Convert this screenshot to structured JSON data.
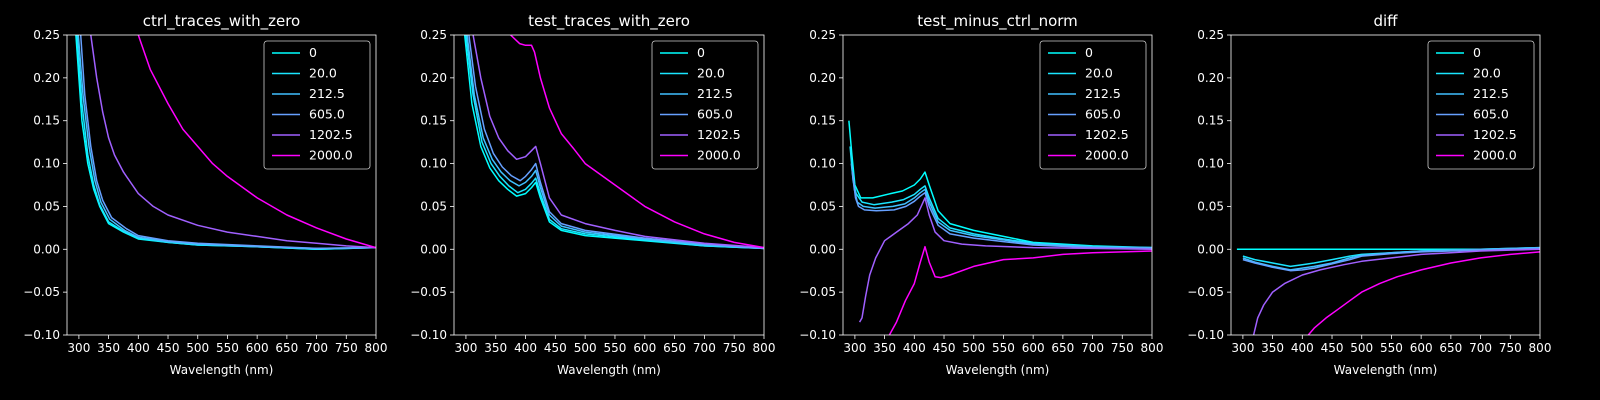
{
  "chart_data": [
    {
      "type": "line",
      "title": "ctrl_traces_with_zero",
      "xlabel": "Wavelength (nm)",
      "ylabel": "",
      "xlim": [
        280,
        800
      ],
      "ylim": [
        -0.1,
        0.25
      ],
      "xticks": [
        "300",
        "350",
        "400",
        "450",
        "500",
        "550",
        "600",
        "650",
        "700",
        "750",
        "800"
      ],
      "yticks": [
        "−0.10",
        "−0.05",
        "0.00",
        "0.05",
        "0.10",
        "0.15",
        "0.20",
        "0.25"
      ],
      "legend": "top-right",
      "series": [
        {
          "name": "0",
          "color": "#00ffff",
          "x": [
            295,
            305,
            315,
            325,
            335,
            350,
            375,
            400,
            450,
            500,
            600,
            700,
            800
          ],
          "y": [
            0.25,
            0.15,
            0.1,
            0.07,
            0.05,
            0.03,
            0.02,
            0.012,
            0.008,
            0.005,
            0.003,
            0.0,
            0.002
          ]
        },
        {
          "name": "20.0",
          "color": "#1ae5ff",
          "x": [
            297,
            305,
            315,
            325,
            335,
            350,
            375,
            400,
            450,
            500,
            600,
            700,
            800
          ],
          "y": [
            0.25,
            0.17,
            0.11,
            0.075,
            0.052,
            0.032,
            0.021,
            0.013,
            0.008,
            0.005,
            0.003,
            0.0,
            0.002
          ]
        },
        {
          "name": "212.5",
          "color": "#40c0ff",
          "x": [
            299,
            307,
            317,
            327,
            337,
            352,
            377,
            400,
            450,
            500,
            600,
            700,
            800
          ],
          "y": [
            0.25,
            0.18,
            0.12,
            0.08,
            0.055,
            0.035,
            0.022,
            0.014,
            0.009,
            0.006,
            0.003,
            0.001,
            0.002
          ]
        },
        {
          "name": "605.0",
          "color": "#66a0ff",
          "x": [
            303,
            310,
            320,
            330,
            340,
            355,
            380,
            400,
            450,
            500,
            600,
            700,
            800
          ],
          "y": [
            0.25,
            0.18,
            0.12,
            0.08,
            0.057,
            0.037,
            0.024,
            0.016,
            0.01,
            0.007,
            0.004,
            0.001,
            0.002
          ]
        },
        {
          "name": "1202.5",
          "color": "#a060ff",
          "x": [
            320,
            330,
            340,
            350,
            360,
            375,
            400,
            425,
            450,
            500,
            550,
            600,
            650,
            700,
            750,
            800
          ],
          "y": [
            0.25,
            0.2,
            0.16,
            0.13,
            0.11,
            0.09,
            0.065,
            0.05,
            0.04,
            0.028,
            0.02,
            0.015,
            0.01,
            0.007,
            0.004,
            0.002
          ]
        },
        {
          "name": "2000.0",
          "color": "#ff00ff",
          "x": [
            400,
            420,
            450,
            475,
            500,
            525,
            550,
            600,
            650,
            700,
            750,
            800
          ],
          "y": [
            0.25,
            0.21,
            0.17,
            0.14,
            0.12,
            0.1,
            0.085,
            0.06,
            0.04,
            0.025,
            0.012,
            0.002
          ]
        }
      ]
    },
    {
      "type": "line",
      "title": "test_traces_with_zero",
      "xlabel": "Wavelength (nm)",
      "ylabel": "",
      "xlim": [
        280,
        800
      ],
      "ylim": [
        -0.1,
        0.25
      ],
      "xticks": [
        "300",
        "350",
        "400",
        "450",
        "500",
        "550",
        "600",
        "650",
        "700",
        "750",
        "800"
      ],
      "yticks": [
        "−0.10",
        "−0.05",
        "0.00",
        "0.05",
        "0.10",
        "0.15",
        "0.20",
        "0.25"
      ],
      "legend": "top-right",
      "series": [
        {
          "name": "0",
          "color": "#00ffff",
          "x": [
            298,
            310,
            325,
            340,
            355,
            370,
            385,
            400,
            410,
            417,
            425,
            440,
            460,
            500,
            600,
            700,
            800
          ],
          "y": [
            0.25,
            0.17,
            0.12,
            0.095,
            0.08,
            0.07,
            0.062,
            0.065,
            0.072,
            0.078,
            0.06,
            0.032,
            0.022,
            0.016,
            0.01,
            0.004,
            0.001
          ]
        },
        {
          "name": "20.0",
          "color": "#1ae5ff",
          "x": [
            300,
            312,
            327,
            342,
            357,
            372,
            387,
            400,
            410,
            417,
            425,
            440,
            460,
            500,
            600,
            700,
            800
          ],
          "y": [
            0.25,
            0.18,
            0.125,
            0.1,
            0.085,
            0.074,
            0.066,
            0.07,
            0.077,
            0.083,
            0.065,
            0.035,
            0.024,
            0.018,
            0.011,
            0.004,
            0.001
          ]
        },
        {
          "name": "212.5",
          "color": "#40c0ff",
          "x": [
            302,
            314,
            329,
            344,
            359,
            374,
            389,
            400,
            410,
            417,
            425,
            440,
            460,
            500,
            600,
            700,
            800
          ],
          "y": [
            0.25,
            0.18,
            0.13,
            0.105,
            0.09,
            0.08,
            0.074,
            0.078,
            0.085,
            0.092,
            0.072,
            0.04,
            0.027,
            0.02,
            0.012,
            0.005,
            0.001
          ]
        },
        {
          "name": "605.0",
          "color": "#66a0ff",
          "x": [
            305,
            316,
            331,
            346,
            361,
            376,
            391,
            400,
            410,
            417,
            425,
            440,
            460,
            500,
            600,
            700,
            800
          ],
          "y": [
            0.25,
            0.19,
            0.14,
            0.112,
            0.096,
            0.086,
            0.08,
            0.085,
            0.093,
            0.1,
            0.078,
            0.044,
            0.03,
            0.022,
            0.013,
            0.006,
            0.001
          ]
        },
        {
          "name": "1202.5",
          "color": "#a060ff",
          "x": [
            312,
            325,
            340,
            355,
            370,
            385,
            400,
            410,
            417,
            425,
            440,
            460,
            500,
            550,
            600,
            700,
            800
          ],
          "y": [
            0.25,
            0.2,
            0.155,
            0.13,
            0.115,
            0.105,
            0.108,
            0.115,
            0.12,
            0.1,
            0.06,
            0.04,
            0.03,
            0.022,
            0.015,
            0.007,
            0.002
          ]
        },
        {
          "name": "2000.0",
          "color": "#ff00ff",
          "x": [
            375,
            390,
            400,
            410,
            415,
            425,
            440,
            460,
            480,
            500,
            550,
            600,
            650,
            700,
            750,
            800
          ],
          "y": [
            0.25,
            0.24,
            0.238,
            0.238,
            0.23,
            0.2,
            0.165,
            0.135,
            0.118,
            0.1,
            0.075,
            0.05,
            0.032,
            0.018,
            0.008,
            0.002
          ]
        }
      ]
    },
    {
      "type": "line",
      "title": "test_minus_ctrl_norm",
      "xlabel": "Wavelength (nm)",
      "ylabel": "",
      "xlim": [
        280,
        800
      ],
      "ylim": [
        -0.1,
        0.25
      ],
      "xticks": [
        "300",
        "350",
        "400",
        "450",
        "500",
        "550",
        "600",
        "650",
        "700",
        "750",
        "800"
      ],
      "yticks": [
        "−0.10",
        "−0.05",
        "0.00",
        "0.05",
        "0.10",
        "0.15",
        "0.20",
        "0.25"
      ],
      "legend": "top-right",
      "series": [
        {
          "name": "0",
          "color": "#00ffff",
          "x": [
            290,
            295,
            300,
            310,
            330,
            360,
            380,
            400,
            410,
            418,
            425,
            440,
            460,
            500,
            550,
            600,
            700,
            800
          ],
          "y": [
            0.15,
            0.11,
            0.075,
            0.06,
            0.06,
            0.065,
            0.068,
            0.075,
            0.082,
            0.09,
            0.075,
            0.045,
            0.03,
            0.022,
            0.015,
            0.008,
            0.004,
            0.002
          ]
        },
        {
          "name": "20.0",
          "color": "#1ae5ff",
          "x": [
            292,
            297,
            302,
            312,
            332,
            362,
            382,
            400,
            410,
            418,
            425,
            440,
            460,
            500,
            550,
            600,
            700,
            800
          ],
          "y": [
            0.12,
            0.08,
            0.065,
            0.055,
            0.052,
            0.055,
            0.058,
            0.064,
            0.07,
            0.074,
            0.06,
            0.036,
            0.025,
            0.018,
            0.012,
            0.007,
            0.003,
            0.002
          ]
        },
        {
          "name": "212.5",
          "color": "#40c0ff",
          "x": [
            294,
            299,
            304,
            314,
            334,
            364,
            384,
            400,
            410,
            418,
            425,
            440,
            460,
            500,
            550,
            600,
            700,
            800
          ],
          "y": [
            0.1,
            0.07,
            0.055,
            0.05,
            0.048,
            0.05,
            0.053,
            0.06,
            0.066,
            0.07,
            0.055,
            0.032,
            0.022,
            0.016,
            0.011,
            0.006,
            0.003,
            0.002
          ]
        },
        {
          "name": "605.0",
          "color": "#66a0ff",
          "x": [
            296,
            301,
            306,
            316,
            336,
            366,
            386,
            400,
            410,
            418,
            425,
            440,
            460,
            500,
            550,
            600,
            700,
            800
          ],
          "y": [
            0.09,
            0.06,
            0.05,
            0.046,
            0.045,
            0.046,
            0.05,
            0.056,
            0.062,
            0.066,
            0.05,
            0.028,
            0.018,
            0.013,
            0.009,
            0.005,
            0.002,
            0.001
          ]
        },
        {
          "name": "1202.5",
          "color": "#a060ff",
          "x": [
            308,
            312,
            318,
            325,
            335,
            350,
            370,
            390,
            405,
            418,
            425,
            435,
            450,
            480,
            520,
            600,
            700,
            800
          ],
          "y": [
            -0.085,
            -0.08,
            -0.055,
            -0.03,
            -0.01,
            0.01,
            0.02,
            0.03,
            0.04,
            0.06,
            0.04,
            0.02,
            0.01,
            0.006,
            0.004,
            0.002,
            0.001,
            0.0
          ]
        },
        {
          "name": "2000.0",
          "color": "#ff00ff",
          "x": [
            358,
            370,
            385,
            400,
            410,
            418,
            425,
            435,
            445,
            460,
            500,
            550,
            600,
            650,
            700,
            750,
            800
          ],
          "y": [
            -0.1,
            -0.085,
            -0.06,
            -0.04,
            -0.015,
            0.003,
            -0.015,
            -0.032,
            -0.033,
            -0.03,
            -0.02,
            -0.012,
            -0.01,
            -0.006,
            -0.004,
            -0.003,
            -0.002
          ]
        }
      ]
    },
    {
      "type": "line",
      "title": "diff",
      "xlabel": "Wavelength (nm)",
      "ylabel": "",
      "xlim": [
        280,
        800
      ],
      "ylim": [
        -0.1,
        0.25
      ],
      "xticks": [
        "300",
        "350",
        "400",
        "450",
        "500",
        "550",
        "600",
        "650",
        "700",
        "750",
        "800"
      ],
      "yticks": [
        "−0.10",
        "−0.05",
        "0.00",
        "0.05",
        "0.10",
        "0.15",
        "0.20",
        "0.25"
      ],
      "legend": "top-right",
      "series": [
        {
          "name": "0",
          "color": "#00ffff",
          "x": [
            290,
            800
          ],
          "y": [
            0.0,
            0.0
          ]
        },
        {
          "name": "20.0",
          "color": "#1ae5ff",
          "x": [
            300,
            320,
            350,
            380,
            400,
            420,
            450,
            480,
            500,
            550,
            600,
            700,
            800
          ],
          "y": [
            -0.008,
            -0.012,
            -0.016,
            -0.02,
            -0.018,
            -0.016,
            -0.012,
            -0.008,
            -0.006,
            -0.004,
            -0.002,
            0.0,
            0.002
          ]
        },
        {
          "name": "212.5",
          "color": "#40c0ff",
          "x": [
            300,
            320,
            350,
            380,
            400,
            420,
            450,
            480,
            500,
            550,
            600,
            700,
            800
          ],
          "y": [
            -0.01,
            -0.015,
            -0.02,
            -0.024,
            -0.022,
            -0.02,
            -0.016,
            -0.01,
            -0.007,
            -0.004,
            -0.002,
            0.0,
            0.002
          ]
        },
        {
          "name": "605.0",
          "color": "#66a0ff",
          "x": [
            300,
            320,
            350,
            380,
            400,
            420,
            450,
            480,
            500,
            550,
            600,
            700,
            800
          ],
          "y": [
            -0.012,
            -0.016,
            -0.021,
            -0.025,
            -0.024,
            -0.022,
            -0.017,
            -0.012,
            -0.008,
            -0.005,
            -0.003,
            -0.001,
            0.001
          ]
        },
        {
          "name": "1202.5",
          "color": "#a060ff",
          "x": [
            318,
            325,
            335,
            350,
            370,
            400,
            430,
            470,
            500,
            550,
            600,
            650,
            700,
            750,
            800
          ],
          "y": [
            -0.1,
            -0.08,
            -0.065,
            -0.05,
            -0.04,
            -0.03,
            -0.024,
            -0.018,
            -0.014,
            -0.01,
            -0.006,
            -0.004,
            -0.002,
            -0.001,
            0.0
          ]
        },
        {
          "name": "2000.0",
          "color": "#ff00ff",
          "x": [
            410,
            420,
            440,
            460,
            480,
            500,
            530,
            560,
            600,
            650,
            700,
            750,
            800
          ],
          "y": [
            -0.1,
            -0.092,
            -0.08,
            -0.07,
            -0.06,
            -0.05,
            -0.04,
            -0.032,
            -0.024,
            -0.016,
            -0.01,
            -0.006,
            -0.003
          ]
        }
      ]
    }
  ]
}
